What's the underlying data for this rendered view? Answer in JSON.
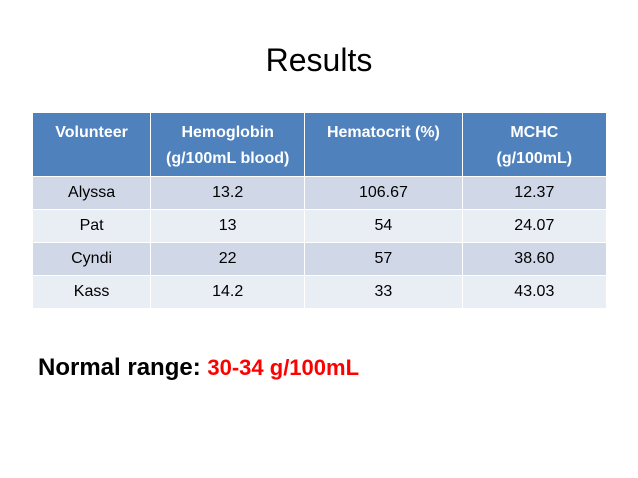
{
  "title": "Results",
  "table": {
    "headers": [
      "Volunteer",
      "Hemoglobin (g/100mL blood)",
      "Hematocrit (%)",
      "MCHC (g/100mL)"
    ],
    "rows": [
      [
        "Alyssa",
        "13.2",
        "106.67",
        "12.37"
      ],
      [
        "Pat",
        "13",
        "54",
        "24.07"
      ],
      [
        "Cyndi",
        "22",
        "57",
        "38.60"
      ],
      [
        "Kass",
        "14.2",
        "33",
        "43.03"
      ]
    ]
  },
  "normal_range": {
    "label": "Normal range:",
    "value": "30-34 g/100mL"
  },
  "colors": {
    "header_bg": "#4f81bd",
    "row_odd_bg": "#d0d8e8",
    "row_even_bg": "#e9edf4",
    "highlight": "#ff0000"
  }
}
